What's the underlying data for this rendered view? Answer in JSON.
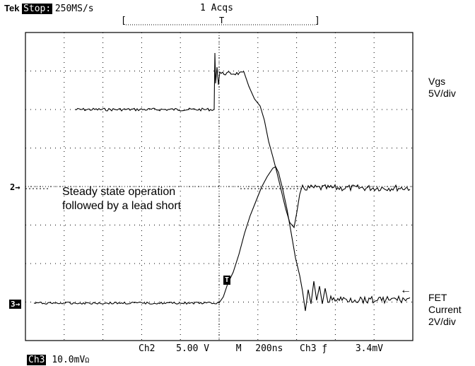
{
  "header": {
    "brand": "Tek",
    "run_state": "Stop:",
    "sample_rate": "250MS/s",
    "acquisitions": "1 Acqs"
  },
  "trigger_markers": {
    "top_bracket_left": "[",
    "top_bracket_right": "]",
    "trigger_position_mark": "T",
    "waveform_trigger_mark": "T",
    "trigger_level_arrow": "←"
  },
  "channel_markers": {
    "ch2": "2→",
    "ch3": "3→"
  },
  "side_labels": {
    "vgs_name": "Vgs",
    "vgs_scale": "5V/div",
    "fet_line1": "FET",
    "fet_line2": "Current",
    "fet_scale": "2V/div"
  },
  "annotation": {
    "line1": "Steady state operation",
    "line2": "followed by a lead short"
  },
  "footer": {
    "ch3_label": "Ch3",
    "ch3_scale": "10.0mV",
    "ch3_unit": "Ω",
    "ch2_label": "Ch2",
    "ch2_scale": "5.00 V",
    "timebase_label": "M",
    "timebase": "200ns",
    "trigger_source": "Ch3",
    "trigger_slope": "ƒ",
    "trigger_level": "3.4mV"
  },
  "colors": {
    "background": "#ffffff",
    "trace": "#000000",
    "grid": "#000000"
  }
}
